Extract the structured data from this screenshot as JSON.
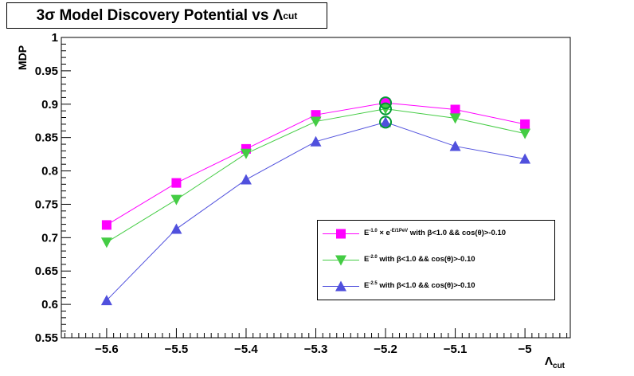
{
  "title": {
    "main": "3σ Model Discovery Potential vs Λ",
    "sub": "cut"
  },
  "chart_data": {
    "type": "line",
    "title": "3σ Model Discovery Potential vs Λcut",
    "xlabel": "Λcut",
    "ylabel": "MDP",
    "xlim": [
      -5.665,
      -4.935
    ],
    "ylim": [
      0.55,
      1.0
    ],
    "x": [
      -5.6,
      -5.5,
      -5.4,
      -5.3,
      -5.2,
      -5.1,
      -5.0
    ],
    "x_ticks": [
      "−5.6",
      "−5.5",
      "−5.4",
      "−5.3",
      "−5.2",
      "−5.1",
      "−5"
    ],
    "y_ticks": [
      "0.55",
      "0.6",
      "0.65",
      "0.7",
      "0.75",
      "0.8",
      "0.85",
      "0.9",
      "0.95",
      "1"
    ],
    "y_tick_values": [
      0.55,
      0.6,
      0.65,
      0.7,
      0.75,
      0.8,
      0.85,
      0.9,
      0.95,
      1.0
    ],
    "grid": false,
    "legend_position": "bottom-right",
    "highlight_x": -5.2,
    "series": [
      {
        "name": "E^-1.0 × e^-E/1PeV with β<1.0 && cos(θ)>-0.10",
        "legend": {
          "base1": "E",
          "sup1": "-1.0",
          "mid": " × e",
          "sup2": "-E/1PeV",
          "rest": " with  β<1.0 && cos(θ)>-0.10"
        },
        "marker": "square",
        "color": "#ff00ff",
        "values": [
          0.719,
          0.782,
          0.833,
          0.884,
          0.902,
          0.892,
          0.87
        ]
      },
      {
        "name": "E^-2.0 with β<1.0 && cos(θ)>-0.10",
        "legend": {
          "base1": "E",
          "sup1": "-2.0",
          "rest": " with  β<1.0 && cos(θ)>-0.10"
        },
        "marker": "triangle-down",
        "color": "#44cc44",
        "values": [
          0.693,
          0.757,
          0.826,
          0.874,
          0.893,
          0.879,
          0.856
        ]
      },
      {
        "name": "E^-2.5 with β<1.0 && cos(θ)>-0.10",
        "legend": {
          "base1": "E",
          "sup1": "-2.5",
          "rest": " with  β<1.0 && cos(θ)>-0.10"
        },
        "marker": "triangle-up",
        "color": "#5050dd",
        "values": [
          0.606,
          0.713,
          0.787,
          0.844,
          0.873,
          0.837,
          0.818
        ]
      }
    ]
  }
}
